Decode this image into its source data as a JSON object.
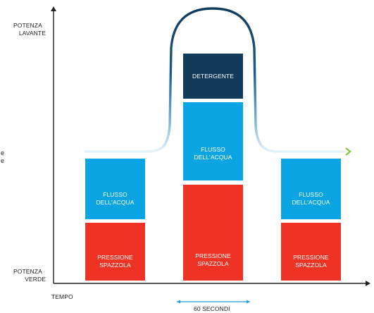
{
  "axes": {
    "y_top_label_1": "POTENZA",
    "y_top_label_2": "LAVANTE",
    "y_bottom_label_1": "POTENZA",
    "y_bottom_label_2": "VERDE",
    "x_label": "TEMPO"
  },
  "duration_label": "60 SECONDI",
  "edge_fragment": {
    "line1": "e",
    "line2": "e"
  },
  "blocks": {
    "left_flow_1": "FLUSSO",
    "left_flow_2": "DELL'ACQUA",
    "left_pressure_1": "PRESSIONE",
    "left_pressure_2": "SPAZZOLA",
    "center_detergent": "DETERGENTE",
    "center_flow_1": "FLUSSO",
    "center_flow_2": "DELL'ACQUA",
    "center_pressure_1": "PRESSIONE",
    "center_pressure_2": "SPAZZOLA",
    "right_flow_1": "FLUSSO",
    "right_flow_2": "DELL'ACQUA",
    "right_pressure_1": "PRESSIONE",
    "right_pressure_2": "SPAZZOLA"
  },
  "colors": {
    "pressure": "#ee3224",
    "water_flow": "#0aa4e3",
    "detergent": "#123a5a",
    "curve_dark": "#14405f",
    "curve_light": "#d8ecf8",
    "arrow_tip": "#8cc63f",
    "duration_arrow": "#1f9ad6"
  }
}
